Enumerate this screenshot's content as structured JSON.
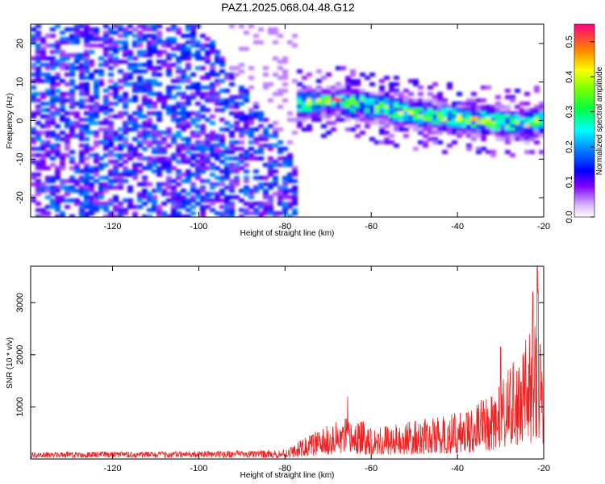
{
  "title": "PAZ1.2025.068.04.48.G12",
  "chart_data": [
    {
      "type": "heatmap",
      "title": "PAZ1.2025.068.04.48.G12",
      "xlabel": "Height of straight line (km)",
      "ylabel": "Frequency (Hz)",
      "xlim": [
        -139,
        -20
      ],
      "ylim": [
        -25,
        25
      ],
      "xticks": [
        -120,
        -100,
        -80,
        -60,
        -40,
        -20
      ],
      "yticks": [
        -20,
        -10,
        0,
        10,
        20
      ],
      "colorbar": {
        "label": "Normalized spectral amplitude",
        "range": [
          0.0,
          0.55
        ],
        "ticks": [
          0.0,
          0.1,
          0.2,
          0.3,
          0.4,
          0.5
        ],
        "colormap": [
          "#ffffff",
          "#8000ff",
          "#0000ff",
          "#00ffff",
          "#00ff00",
          "#ffff00",
          "#ff8000",
          "#ff0080"
        ]
      },
      "dominant_ridge": [
        {
          "x": -80,
          "y": 4
        },
        {
          "x": -75,
          "y": 5
        },
        {
          "x": -70,
          "y": 5.5
        },
        {
          "x": -65,
          "y": 5
        },
        {
          "x": -60,
          "y": 4
        },
        {
          "x": -55,
          "y": 3
        },
        {
          "x": -50,
          "y": 2
        },
        {
          "x": -45,
          "y": 1.5
        },
        {
          "x": -40,
          "y": 1
        },
        {
          "x": -35,
          "y": 0.5
        },
        {
          "x": -30,
          "y": 0
        },
        {
          "x": -25,
          "y": -1
        },
        {
          "x": -20,
          "y": 1
        }
      ],
      "peak_amplitude": 0.55
    },
    {
      "type": "line",
      "xlabel": "Height of straight line (km)",
      "ylabel": "SNR (10 * v/v)",
      "xlim": [
        -139,
        -20
      ],
      "ylim": [
        0,
        3700
      ],
      "xticks": [
        -120,
        -100,
        -80,
        -60,
        -40,
        -20
      ],
      "yticks": [
        1000,
        2000,
        3000
      ],
      "color": "#ee2222",
      "envelope": [
        {
          "x": -139,
          "y": 130
        },
        {
          "x": -120,
          "y": 140
        },
        {
          "x": -100,
          "y": 150
        },
        {
          "x": -82,
          "y": 170
        },
        {
          "x": -78,
          "y": 260
        },
        {
          "x": -74,
          "y": 500
        },
        {
          "x": -70,
          "y": 650
        },
        {
          "x": -66,
          "y": 800
        },
        {
          "x": -60,
          "y": 700
        },
        {
          "x": -55,
          "y": 650
        },
        {
          "x": -50,
          "y": 750
        },
        {
          "x": -45,
          "y": 800
        },
        {
          "x": -40,
          "y": 900
        },
        {
          "x": -35,
          "y": 1100
        },
        {
          "x": -30,
          "y": 1500
        },
        {
          "x": -26,
          "y": 2000
        },
        {
          "x": -23,
          "y": 2500
        },
        {
          "x": -21.5,
          "y": 3700
        },
        {
          "x": -20,
          "y": 1600
        }
      ],
      "peaks": [
        {
          "x": -65.5,
          "y": 1200
        },
        {
          "x": -30,
          "y": 2150
        },
        {
          "x": -24.5,
          "y": 2050
        },
        {
          "x": -22.5,
          "y": 3200
        },
        {
          "x": -21.5,
          "y": 3700
        },
        {
          "x": -20.8,
          "y": 2200
        }
      ]
    }
  ]
}
